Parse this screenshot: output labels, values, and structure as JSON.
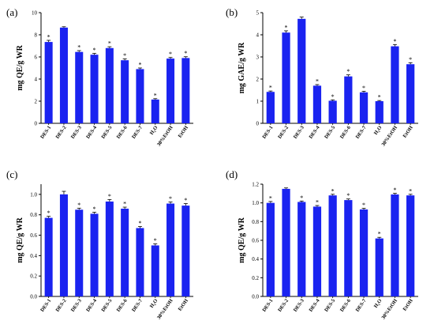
{
  "chart_data": [
    {
      "type": "bar",
      "panel": "(a)",
      "ylabel": "mg QE/g WR",
      "ylim": [
        0,
        10
      ],
      "yticks": [
        "0",
        "2",
        "4",
        "6",
        "8",
        "10"
      ],
      "categories": [
        "DES-1",
        "DES-2",
        "DES-3",
        "DES-4",
        "DES-5",
        "DES-6",
        "DES-7",
        "H₂O",
        "30%EtOH",
        "EtOH"
      ],
      "values": [
        7.35,
        8.65,
        6.45,
        6.2,
        6.8,
        5.7,
        4.9,
        2.15,
        5.85,
        5.9
      ],
      "errors": [
        0.15,
        0.08,
        0.12,
        0.12,
        0.12,
        0.12,
        0.1,
        0.08,
        0.1,
        0.12
      ],
      "significant": [
        true,
        false,
        true,
        true,
        true,
        true,
        true,
        true,
        true,
        true
      ],
      "significance_marker": "*"
    },
    {
      "type": "bar",
      "panel": "(b)",
      "ylabel": "mg GAE/g WR",
      "ylim": [
        0,
        5
      ],
      "yticks": [
        "0",
        "1",
        "2",
        "3",
        "4",
        "5"
      ],
      "categories": [
        "DES-1",
        "DES-2",
        "DES-3",
        "DES-4",
        "DES-5",
        "DES-6",
        "DES-7",
        "H₂O",
        "30%EtOH",
        "EtOH"
      ],
      "values": [
        1.42,
        4.1,
        4.72,
        1.7,
        1.02,
        2.12,
        1.4,
        1.0,
        3.48,
        2.67
      ],
      "errors": [
        0.04,
        0.08,
        0.08,
        0.05,
        0.04,
        0.07,
        0.05,
        0.03,
        0.08,
        0.07
      ],
      "significant": [
        true,
        true,
        false,
        true,
        true,
        true,
        true,
        true,
        true,
        true
      ],
      "significance_marker": "*"
    },
    {
      "type": "bar",
      "panel": "(c)",
      "ylabel": "mg QE/g WR",
      "ylim": [
        0,
        1.1
      ],
      "yticks": [
        "0.0",
        "0.2",
        "0.4",
        "0.6",
        "0.8",
        "1.0"
      ],
      "categories": [
        "DES-1",
        "DES-2",
        "DES-3",
        "DES-4",
        "DES-5",
        "DES-6",
        "DES-7",
        "H₂O",
        "30%EtOH",
        "EtOH"
      ],
      "values": [
        0.77,
        1.0,
        0.85,
        0.81,
        0.93,
        0.86,
        0.67,
        0.5,
        0.91,
        0.89
      ],
      "errors": [
        0.015,
        0.03,
        0.015,
        0.015,
        0.02,
        0.015,
        0.015,
        0.015,
        0.015,
        0.02
      ],
      "significant": [
        true,
        false,
        true,
        true,
        true,
        true,
        true,
        true,
        true,
        true
      ],
      "significance_marker": "*"
    },
    {
      "type": "bar",
      "panel": "(d)",
      "ylabel": "mg QE/g WR",
      "ylim": [
        0,
        1.2
      ],
      "yticks": [
        "0.0",
        "0.2",
        "0.4",
        "0.6",
        "0.8",
        "1.0",
        "1.2"
      ],
      "categories": [
        "DES-1",
        "DES-2",
        "DES-3",
        "DES-4",
        "DES-5",
        "DES-6",
        "DES-7",
        "H₂O",
        "30%EtOH",
        "EtOH"
      ],
      "values": [
        1.0,
        1.15,
        1.01,
        0.96,
        1.08,
        1.03,
        0.93,
        0.62,
        1.09,
        1.08
      ],
      "errors": [
        0.015,
        0.01,
        0.01,
        0.012,
        0.012,
        0.012,
        0.012,
        0.012,
        0.012,
        0.012
      ],
      "significant": [
        true,
        false,
        true,
        true,
        true,
        true,
        true,
        true,
        true,
        true
      ],
      "significance_marker": "*"
    }
  ],
  "colors": {
    "bar": "#1a23f0",
    "axis": "#000000",
    "error": "#000000",
    "star": "#000000"
  }
}
